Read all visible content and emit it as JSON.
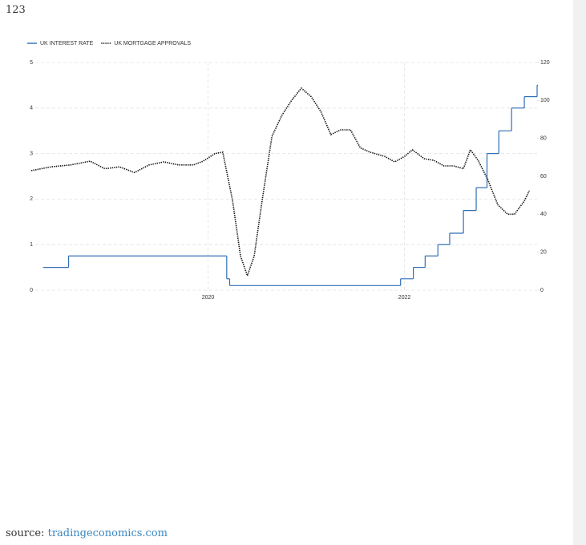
{
  "header": "123",
  "chart_data": {
    "type": "line",
    "series": [
      {
        "name": "UK INTEREST RATE",
        "color": "#2f6fb5",
        "style": "step",
        "axis": "y",
        "x": [
          2018.32,
          2018.58,
          2020.19,
          2020.22,
          2021.96,
          2022.09,
          2022.21,
          2022.34,
          2022.46,
          2022.6,
          2022.73,
          2022.84,
          2022.96,
          2023.09,
          2023.22,
          2023.35
        ],
        "values": [
          0.5,
          0.75,
          0.25,
          0.1,
          0.25,
          0.5,
          0.75,
          1,
          1.25,
          1.75,
          2.25,
          3,
          3.5,
          4,
          4.25,
          4.5
        ]
      },
      {
        "name": "UK MORTGAGE APPROVALS",
        "color": "#111111",
        "style": "dotted",
        "axis": "y2",
        "x": [
          2018.2,
          2018.4,
          2018.6,
          2018.8,
          2018.95,
          2019.1,
          2019.25,
          2019.4,
          2019.55,
          2019.7,
          2019.85,
          2019.95,
          2020.07,
          2020.15,
          2020.25,
          2020.33,
          2020.4,
          2020.47,
          2020.55,
          2020.65,
          2020.75,
          2020.85,
          2020.95,
          2021.05,
          2021.15,
          2021.25,
          2021.35,
          2021.45,
          2021.55,
          2021.65,
          2021.8,
          2021.9,
          2022.0,
          2022.08,
          2022.2,
          2022.3,
          2022.4,
          2022.5,
          2022.6,
          2022.67,
          2022.75,
          2022.85,
          2022.95,
          2023.05,
          2023.12,
          2023.22,
          2023.27
        ],
        "values": [
          63,
          65,
          66,
          68,
          64,
          65,
          62,
          66,
          67.6,
          66,
          66,
          68,
          72,
          72.7,
          47,
          18,
          7.6,
          18,
          47,
          81,
          92,
          100,
          106.5,
          102,
          94,
          82,
          84.5,
          84.5,
          75,
          72.7,
          70.5,
          67.6,
          70.5,
          74,
          69.3,
          68.4,
          65.5,
          65.5,
          64,
          74,
          68.4,
          58,
          45,
          40,
          40,
          47,
          52.4
        ]
      }
    ],
    "xlim": [
      2018.2,
      2023.35
    ],
    "xticks": [
      2020,
      2022
    ],
    "ylim": [
      0,
      5
    ],
    "yticks": [
      0,
      1,
      2,
      3,
      4,
      5
    ],
    "y2lim": [
      0,
      120
    ],
    "y2ticks": [
      0,
      20,
      40,
      60,
      80,
      100,
      120
    ],
    "grid": true,
    "legend": "top-left"
  },
  "source": {
    "label": "source:",
    "link": "tradingeconomics.com"
  }
}
